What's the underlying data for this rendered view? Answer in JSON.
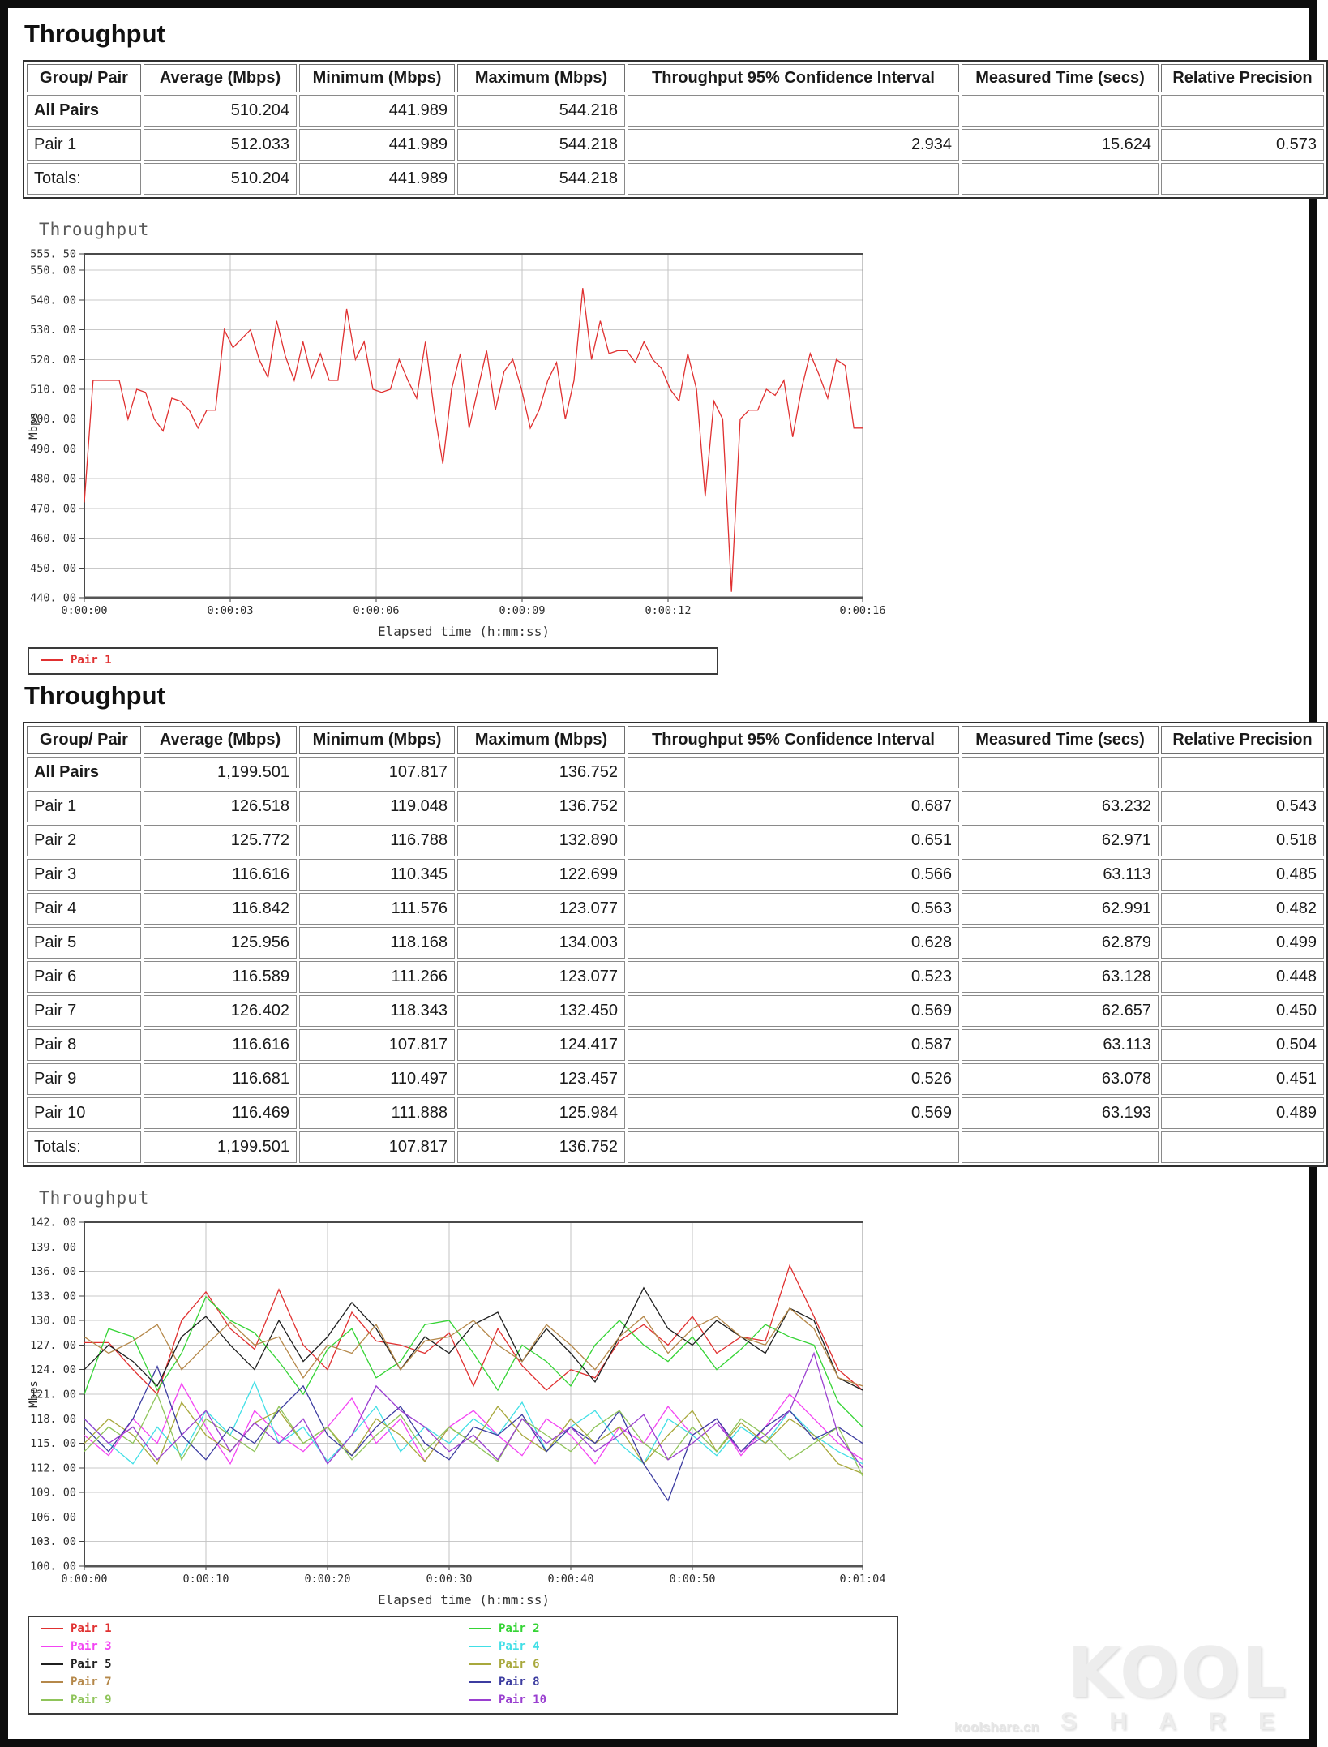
{
  "sections": [
    {
      "title": "Throughput"
    },
    {
      "title": "Throughput"
    }
  ],
  "watermark": {
    "logo": "KOOL",
    "share": "S H A R E",
    "site": "koolshare.cn"
  },
  "tables": [
    {
      "headers": [
        "Group/ Pair",
        "Average (Mbps)",
        "Minimum (Mbps)",
        "Maximum (Mbps)",
        "Throughput 95% Confidence Interval",
        "Measured Time (secs)",
        "Relative Precision"
      ],
      "rows": [
        {
          "label": "All Pairs",
          "bold": true,
          "cells": [
            "510.204",
            "441.989",
            "544.218",
            "",
            "",
            ""
          ]
        },
        {
          "label": "Pair 1",
          "bold": false,
          "cells": [
            "512.033",
            "441.989",
            "544.218",
            "2.934",
            "15.624",
            "0.573"
          ]
        },
        {
          "label": "Totals:",
          "bold": false,
          "cells": [
            "510.204",
            "441.989",
            "544.218",
            "",
            "",
            ""
          ]
        }
      ]
    },
    {
      "headers": [
        "Group/ Pair",
        "Average (Mbps)",
        "Minimum (Mbps)",
        "Maximum (Mbps)",
        "Throughput 95% Confidence Interval",
        "Measured Time (secs)",
        "Relative Precision"
      ],
      "rows": [
        {
          "label": "All Pairs",
          "bold": true,
          "cells": [
            "1,199.501",
            "107.817",
            "136.752",
            "",
            "",
            ""
          ]
        },
        {
          "label": "Pair 1",
          "bold": false,
          "cells": [
            "126.518",
            "119.048",
            "136.752",
            "0.687",
            "63.232",
            "0.543"
          ]
        },
        {
          "label": "Pair 2",
          "bold": false,
          "cells": [
            "125.772",
            "116.788",
            "132.890",
            "0.651",
            "62.971",
            "0.518"
          ]
        },
        {
          "label": "Pair 3",
          "bold": false,
          "cells": [
            "116.616",
            "110.345",
            "122.699",
            "0.566",
            "63.113",
            "0.485"
          ]
        },
        {
          "label": "Pair 4",
          "bold": false,
          "cells": [
            "116.842",
            "111.576",
            "123.077",
            "0.563",
            "62.991",
            "0.482"
          ]
        },
        {
          "label": "Pair 5",
          "bold": false,
          "cells": [
            "125.956",
            "118.168",
            "134.003",
            "0.628",
            "62.879",
            "0.499"
          ]
        },
        {
          "label": "Pair 6",
          "bold": false,
          "cells": [
            "116.589",
            "111.266",
            "123.077",
            "0.523",
            "63.128",
            "0.448"
          ]
        },
        {
          "label": "Pair 7",
          "bold": false,
          "cells": [
            "126.402",
            "118.343",
            "132.450",
            "0.569",
            "62.657",
            "0.450"
          ]
        },
        {
          "label": "Pair 8",
          "bold": false,
          "cells": [
            "116.616",
            "107.817",
            "124.417",
            "0.587",
            "63.113",
            "0.504"
          ]
        },
        {
          "label": "Pair 9",
          "bold": false,
          "cells": [
            "116.681",
            "110.497",
            "123.457",
            "0.526",
            "63.078",
            "0.451"
          ]
        },
        {
          "label": "Pair 10",
          "bold": false,
          "cells": [
            "116.469",
            "111.888",
            "125.984",
            "0.569",
            "63.193",
            "0.489"
          ]
        },
        {
          "label": "Totals:",
          "bold": false,
          "cells": [
            "1,199.501",
            "107.817",
            "136.752",
            "",
            "",
            ""
          ]
        }
      ]
    }
  ],
  "chart_data": [
    {
      "type": "line",
      "title": "Throughput",
      "ylabel": "Mbps",
      "xlabel": "Elapsed time (h:mm:ss)",
      "ymin": 440,
      "ymax": 555.5,
      "xmax": 16,
      "grid": true,
      "legend_position": "bottom",
      "yticks": [
        {
          "v": 555.5,
          "l": "555. 50"
        },
        {
          "v": 550,
          "l": "550. 00"
        },
        {
          "v": 540,
          "l": "540. 00"
        },
        {
          "v": 530,
          "l": "530. 00"
        },
        {
          "v": 520,
          "l": "520. 00"
        },
        {
          "v": 510,
          "l": "510. 00"
        },
        {
          "v": 500,
          "l": "500. 00"
        },
        {
          "v": 490,
          "l": "490. 00"
        },
        {
          "v": 480,
          "l": "480. 00"
        },
        {
          "v": 470,
          "l": "470. 00"
        },
        {
          "v": 460,
          "l": "460. 00"
        },
        {
          "v": 450,
          "l": "450. 00"
        },
        {
          "v": 440,
          "l": "440. 00"
        }
      ],
      "xticks": [
        {
          "t": 0,
          "l": "0:00:00"
        },
        {
          "t": 3,
          "l": "0:00:03"
        },
        {
          "t": 6,
          "l": "0:00:06"
        },
        {
          "t": 9,
          "l": "0:00:09"
        },
        {
          "t": 12,
          "l": "0:00:12"
        },
        {
          "t": 16,
          "l": "0:00:16"
        }
      ],
      "series": [
        {
          "name": "Pair 1",
          "color": "#e03030",
          "values": [
            472,
            513,
            513,
            513,
            513,
            500,
            510,
            509,
            500,
            496,
            507,
            506,
            503,
            497,
            503,
            503,
            530,
            524,
            527,
            530,
            520,
            514,
            533,
            521,
            513,
            526,
            514,
            522,
            513,
            513,
            537,
            520,
            526,
            510,
            509,
            510,
            520,
            513,
            507,
            526,
            503,
            485,
            510,
            522,
            497,
            510,
            523,
            503,
            516,
            520,
            510,
            497,
            503,
            513,
            519,
            500,
            513,
            544,
            520,
            533,
            522,
            523,
            523,
            519,
            526,
            520,
            517,
            510,
            506,
            522,
            510,
            474,
            506,
            500,
            442,
            500,
            503,
            503,
            510,
            508,
            513,
            494,
            510,
            522,
            515,
            507,
            520,
            518,
            497,
            497
          ]
        }
      ]
    },
    {
      "type": "line",
      "title": "Throughput",
      "ylabel": "Mbps",
      "xlabel": "Elapsed time (h:mm:ss)",
      "ymin": 100,
      "ymax": 142,
      "xmax": 64,
      "grid": true,
      "legend_position": "bottom",
      "yticks": [
        {
          "v": 142,
          "l": "142. 00"
        },
        {
          "v": 139,
          "l": "139. 00"
        },
        {
          "v": 136,
          "l": "136. 00"
        },
        {
          "v": 133,
          "l": "133. 00"
        },
        {
          "v": 130,
          "l": "130. 00"
        },
        {
          "v": 127,
          "l": "127. 00"
        },
        {
          "v": 124,
          "l": "124. 00"
        },
        {
          "v": 121,
          "l": "121. 00"
        },
        {
          "v": 118,
          "l": "118. 00"
        },
        {
          "v": 115,
          "l": "115. 00"
        },
        {
          "v": 112,
          "l": "112. 00"
        },
        {
          "v": 109,
          "l": "109. 00"
        },
        {
          "v": 106,
          "l": "106. 00"
        },
        {
          "v": 103,
          "l": "103. 00"
        },
        {
          "v": 100,
          "l": "100. 00"
        }
      ],
      "xticks": [
        {
          "t": 0,
          "l": "0:00:00"
        },
        {
          "t": 10,
          "l": "0:00:10"
        },
        {
          "t": 20,
          "l": "0:00:20"
        },
        {
          "t": 30,
          "l": "0:00:30"
        },
        {
          "t": 40,
          "l": "0:00:40"
        },
        {
          "t": 50,
          "l": "0:00:50"
        },
        {
          "t": 64,
          "l": "0:01:04"
        }
      ],
      "series": [
        {
          "name": "Pair 1",
          "color": "#e03030",
          "values": [
            127.3,
            127.3,
            124,
            121,
            130,
            133.5,
            129,
            126.5,
            133.8,
            127,
            124,
            131,
            127.5,
            127,
            126,
            128.5,
            122,
            129,
            124.5,
            121.5,
            124,
            123,
            127.5,
            129.5,
            127,
            130.5,
            126,
            128,
            127.5,
            136.7,
            130.5,
            124,
            121.5
          ]
        },
        {
          "name": "Pair 2",
          "color": "#35d435",
          "values": [
            121,
            129,
            128,
            121.5,
            126,
            132.9,
            130,
            128.5,
            125,
            121,
            126.5,
            129,
            123,
            125,
            129.5,
            130,
            126,
            121.5,
            127,
            125,
            122,
            127,
            130,
            127,
            125,
            128,
            124,
            126.5,
            129.5,
            128,
            127,
            120,
            117
          ]
        },
        {
          "name": "Pair 3",
          "color": "#f344f3",
          "values": [
            116,
            113.5,
            118,
            115,
            122.3,
            117,
            112.5,
            119,
            116,
            114,
            117,
            120.5,
            115,
            118,
            112.8,
            117,
            119,
            116,
            113.5,
            118,
            116,
            112.5,
            117,
            115,
            119.5,
            116,
            118,
            113.5,
            117,
            121,
            118,
            115,
            113
          ]
        },
        {
          "name": "Pair 4",
          "color": "#41dfe6",
          "values": [
            118,
            115,
            112.5,
            117,
            113.5,
            119,
            116,
            122.5,
            115,
            117,
            112.8,
            116,
            119.5,
            114,
            117,
            115,
            118,
            116,
            120,
            114,
            117,
            119,
            115,
            112.5,
            118,
            116,
            113.5,
            117,
            115,
            119,
            116,
            114,
            112.5
          ]
        },
        {
          "name": "Pair 5",
          "color": "#1f1f1f",
          "values": [
            124,
            127,
            125,
            122,
            128,
            130.5,
            127,
            124,
            130,
            125,
            128,
            132.2,
            129,
            124,
            128,
            126,
            129.5,
            131,
            125,
            129,
            126,
            122.5,
            128,
            134,
            129,
            127,
            130,
            128,
            126,
            131.5,
            130,
            123,
            121.5
          ]
        },
        {
          "name": "Pair 6",
          "color": "#a8a83c",
          "values": [
            115,
            118,
            116,
            112.5,
            120,
            116,
            114,
            117.5,
            119,
            115,
            117,
            113.5,
            118,
            116,
            112.8,
            117,
            115,
            119.5,
            116,
            114,
            118,
            115,
            117,
            112.5,
            116,
            119,
            114,
            117.5,
            115,
            118,
            116,
            112.5,
            111.3
          ]
        },
        {
          "name": "Pair 7",
          "color": "#b5884a",
          "values": [
            128,
            126,
            127.5,
            129.5,
            124,
            127,
            129.8,
            127,
            128,
            123,
            127,
            126,
            129.5,
            124,
            127.5,
            128,
            130,
            127,
            125,
            129.5,
            127,
            124,
            128,
            130.5,
            126,
            129,
            130.5,
            128,
            127,
            131.5,
            129,
            123,
            122
          ]
        },
        {
          "name": "Pair 8",
          "color": "#3c3ca0",
          "values": [
            117,
            114,
            118,
            124.4,
            116,
            113,
            117,
            115,
            119,
            122,
            116,
            113.5,
            117,
            119.5,
            115,
            113,
            117,
            116,
            118.5,
            114,
            117,
            115,
            119,
            112.5,
            108,
            116,
            118,
            114,
            117,
            119,
            115.5,
            117,
            115
          ]
        },
        {
          "name": "Pair 9",
          "color": "#8fc45a",
          "values": [
            114,
            117,
            115,
            121,
            113,
            118,
            116,
            114,
            119.5,
            115,
            117,
            113,
            116,
            118.5,
            114,
            117,
            115,
            112.8,
            118,
            116,
            114,
            117,
            119,
            115,
            113,
            117,
            114,
            118,
            116,
            113,
            115,
            117,
            111
          ]
        },
        {
          "name": "Pair 10",
          "color": "#9a3fd0",
          "values": [
            118,
            115,
            117,
            113,
            116,
            119,
            114,
            117.5,
            115,
            118,
            112.5,
            116,
            122,
            119,
            117,
            114,
            116,
            113,
            118,
            115,
            117,
            114,
            116,
            118.5,
            113,
            115,
            117.5,
            114,
            116,
            119,
            126,
            116,
            112
          ]
        }
      ]
    }
  ]
}
